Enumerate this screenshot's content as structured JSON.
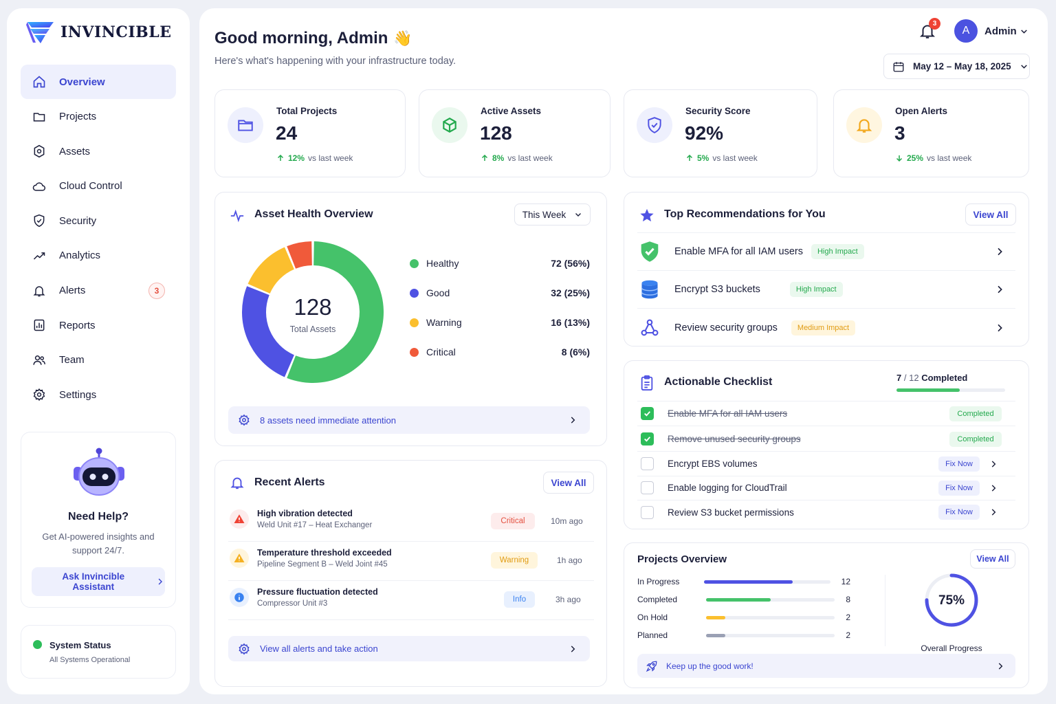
{
  "brand": {
    "name": "INVINCIBLE"
  },
  "sidebar": {
    "items": [
      {
        "label": "Overview",
        "icon": "home-icon"
      },
      {
        "label": "Projects",
        "icon": "folder-icon"
      },
      {
        "label": "Assets",
        "icon": "asset-icon"
      },
      {
        "label": "Cloud Control",
        "icon": "cloud-icon"
      },
      {
        "label": "Security",
        "icon": "shield-icon"
      },
      {
        "label": "Analytics",
        "icon": "trend-icon"
      },
      {
        "label": "Alerts",
        "icon": "bell-icon",
        "badge": "3"
      },
      {
        "label": "Reports",
        "icon": "report-icon"
      },
      {
        "label": "Team",
        "icon": "team-icon"
      },
      {
        "label": "Settings",
        "icon": "gear-icon"
      }
    ],
    "help": {
      "title": "Need Help?",
      "text": "Get AI-powered insights and support 24/7.",
      "button": "Ask Invincible Assistant"
    },
    "status": {
      "title": "System Status",
      "subtitle": "All Systems Operational"
    }
  },
  "header": {
    "greeting": "Good morning, Admin",
    "emoji": "👋",
    "subtitle": "Here's what's happening with your infrastructure today.",
    "notification_count": "3",
    "user_initial": "A",
    "user_name": "Admin",
    "date_range": "May 12 – May 18, 2025"
  },
  "stats": [
    {
      "label": "Total Projects",
      "value": "24",
      "pct": "12%",
      "direction": "up",
      "compare": "vs last week"
    },
    {
      "label": "Active Assets",
      "value": "128",
      "pct": "8%",
      "direction": "up",
      "compare": "vs last week"
    },
    {
      "label": "Security Score",
      "value": "92%",
      "pct": "5%",
      "direction": "up",
      "compare": "vs last week"
    },
    {
      "label": "Open Alerts",
      "value": "3",
      "pct": "25%",
      "direction": "down",
      "compare": "vs last week"
    }
  ],
  "asset_health": {
    "title": "Asset Health Overview",
    "period": "This Week",
    "total": "128",
    "total_label": "Total Assets",
    "legend": [
      {
        "label": "Healthy",
        "value": "72 (56%)",
        "count": 72,
        "color": "#45c26a"
      },
      {
        "label": "Good",
        "value": "32 (25%)",
        "count": 32,
        "color": "#4f52e3"
      },
      {
        "label": "Warning",
        "value": "16 (13%)",
        "count": 16,
        "color": "#fbbf2e"
      },
      {
        "label": "Critical",
        "value": "8 (6%)",
        "count": 8,
        "color": "#f05a3a"
      }
    ],
    "attention": "8 assets need immediate attention"
  },
  "recent_alerts": {
    "title": "Recent Alerts",
    "view_all": "View All",
    "items": [
      {
        "title": "High vibration detected",
        "source": "Weld Unit #17 – Heat Exchanger",
        "level": "Critical",
        "time": "10m ago"
      },
      {
        "title": "Temperature threshold exceeded",
        "source": "Pipeline Segment B – Weld Joint #45",
        "level": "Warning",
        "time": "1h ago"
      },
      {
        "title": "Pressure fluctuation detected",
        "source": "Compressor Unit #3",
        "level": "Info",
        "time": "3h ago"
      }
    ],
    "footer": "View all alerts and take action"
  },
  "recommendations": {
    "title": "Top Recommendations for You",
    "view_all": "View All",
    "items": [
      {
        "label": "Enable MFA for all IAM users",
        "impact": "High Impact",
        "icon": "shield-check-icon"
      },
      {
        "label": "Encrypt S3 buckets",
        "impact": "High Impact",
        "icon": "database-icon"
      },
      {
        "label": "Review security groups",
        "impact": "Medium Impact",
        "icon": "network-icon"
      }
    ]
  },
  "checklist": {
    "title": "Actionable Checklist",
    "done": "7",
    "total": "12",
    "completed_word": "Completed",
    "progress": 0.5833,
    "items": [
      {
        "label": "Enable MFA for all IAM users",
        "done": true,
        "tag": "Completed"
      },
      {
        "label": "Remove unused security groups",
        "done": true,
        "tag": "Completed"
      },
      {
        "label": "Encrypt EBS volumes",
        "done": false,
        "tag": "Fix Now"
      },
      {
        "label": "Enable logging for CloudTrail",
        "done": false,
        "tag": "Fix Now"
      },
      {
        "label": "Review S3 bucket permissions",
        "done": false,
        "tag": "Fix Now"
      }
    ]
  },
  "projects": {
    "title": "Projects Overview",
    "view_all": "View All",
    "rows": [
      {
        "label": "In Progress",
        "value": "12",
        "fraction": 0.7,
        "color": "#4f52e3"
      },
      {
        "label": "Completed",
        "value": "8",
        "fraction": 0.5,
        "color": "#45c26a"
      },
      {
        "label": "On Hold",
        "value": "2",
        "fraction": 0.15,
        "color": "#fbbf2e"
      },
      {
        "label": "Planned",
        "value": "2",
        "fraction": 0.15,
        "color": "#9aa0b4"
      }
    ],
    "overall_pct": "75%",
    "overall_fraction": 0.75,
    "overall_label": "Overall Progress",
    "footer": "Keep up the good work!"
  }
}
